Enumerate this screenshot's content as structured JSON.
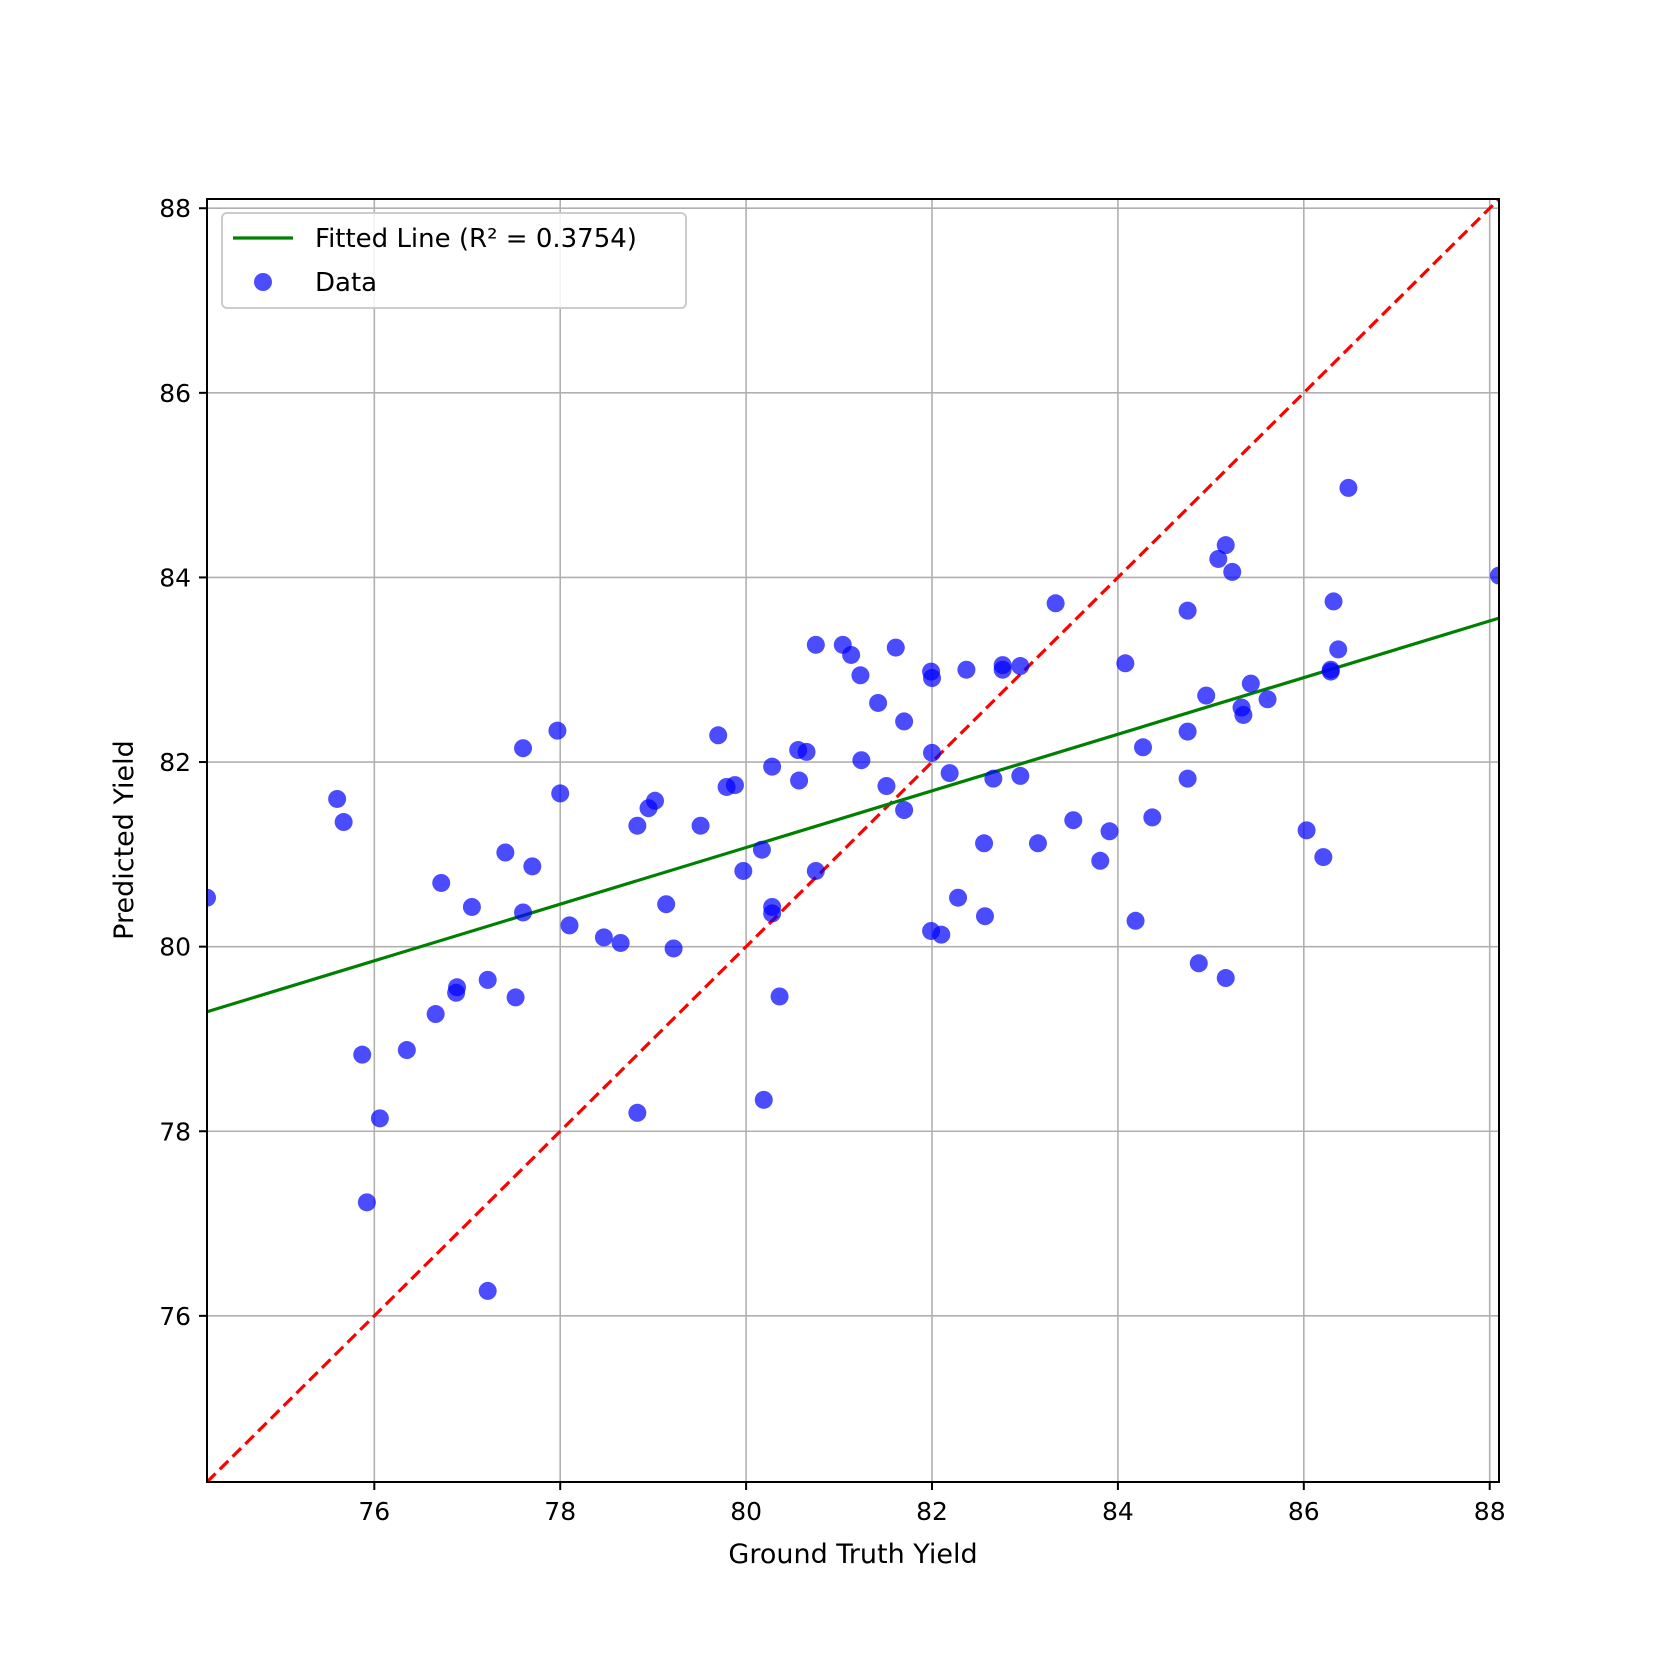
{
  "chart_data": {
    "type": "scatter",
    "xlabel": "Ground Truth Yield",
    "ylabel": "Predicted Yield",
    "xlim": [
      74.2,
      88.1
    ],
    "ylim": [
      74.2,
      88.1
    ],
    "x_ticks": [
      76,
      78,
      80,
      82,
      84,
      86,
      88
    ],
    "y_ticks": [
      76,
      78,
      80,
      82,
      84,
      86,
      88
    ],
    "grid": true,
    "legend_position": "top-left",
    "colors": {
      "fit": "#008000",
      "identity": "#ff0000",
      "points": "#0000ff"
    },
    "fitted_line": {
      "label": "Fitted Line (R² = 0.3754)",
      "slope": 0.3068,
      "intercept": 56.53
    },
    "identity_line": {
      "style": "dashed"
    },
    "series": [
      {
        "name": "Data",
        "points": [
          [
            74.2,
            80.53
          ],
          [
            75.6,
            81.6
          ],
          [
            75.67,
            81.35
          ],
          [
            75.87,
            78.83
          ],
          [
            75.92,
            77.23
          ],
          [
            76.06,
            78.14
          ],
          [
            76.35,
            78.88
          ],
          [
            76.66,
            79.27
          ],
          [
            76.72,
            80.69
          ],
          [
            76.88,
            79.5
          ],
          [
            76.89,
            79.56
          ],
          [
            77.05,
            80.43
          ],
          [
            77.22,
            79.64
          ],
          [
            77.22,
            76.27
          ],
          [
            77.41,
            81.02
          ],
          [
            77.52,
            79.45
          ],
          [
            77.6,
            82.15
          ],
          [
            77.6,
            80.37
          ],
          [
            77.7,
            80.87
          ],
          [
            77.97,
            82.34
          ],
          [
            78.0,
            81.66
          ],
          [
            78.1,
            80.23
          ],
          [
            78.47,
            80.1
          ],
          [
            78.65,
            80.04
          ],
          [
            78.83,
            81.31
          ],
          [
            78.83,
            78.2
          ],
          [
            78.95,
            81.5
          ],
          [
            79.02,
            81.58
          ],
          [
            79.14,
            80.46
          ],
          [
            79.22,
            79.98
          ],
          [
            79.51,
            81.31
          ],
          [
            79.7,
            82.29
          ],
          [
            79.79,
            81.73
          ],
          [
            79.88,
            81.75
          ],
          [
            79.97,
            80.82
          ],
          [
            80.17,
            81.05
          ],
          [
            80.19,
            78.34
          ],
          [
            80.28,
            81.95
          ],
          [
            80.28,
            80.43
          ],
          [
            80.28,
            80.36
          ],
          [
            80.36,
            79.46
          ],
          [
            80.56,
            82.13
          ],
          [
            80.57,
            81.8
          ],
          [
            80.65,
            82.11
          ],
          [
            80.75,
            83.27
          ],
          [
            80.75,
            80.82
          ],
          [
            81.04,
            83.27
          ],
          [
            81.13,
            83.16
          ],
          [
            81.23,
            82.94
          ],
          [
            81.24,
            82.02
          ],
          [
            81.42,
            82.64
          ],
          [
            81.51,
            81.74
          ],
          [
            81.61,
            83.24
          ],
          [
            81.7,
            82.44
          ],
          [
            81.7,
            81.48
          ],
          [
            81.99,
            82.98
          ],
          [
            82.0,
            82.91
          ],
          [
            82.0,
            82.1
          ],
          [
            81.99,
            80.17
          ],
          [
            82.1,
            80.13
          ],
          [
            82.19,
            81.88
          ],
          [
            82.28,
            80.53
          ],
          [
            82.37,
            83.0
          ],
          [
            82.56,
            81.12
          ],
          [
            82.57,
            80.33
          ],
          [
            82.66,
            81.82
          ],
          [
            82.76,
            83.05
          ],
          [
            82.76,
            83.0
          ],
          [
            82.95,
            83.04
          ],
          [
            82.95,
            81.85
          ],
          [
            83.14,
            81.12
          ],
          [
            83.33,
            83.72
          ],
          [
            83.52,
            81.37
          ],
          [
            83.81,
            80.93
          ],
          [
            83.91,
            81.25
          ],
          [
            84.08,
            83.07
          ],
          [
            84.19,
            80.28
          ],
          [
            84.27,
            82.16
          ],
          [
            84.37,
            81.4
          ],
          [
            84.75,
            83.64
          ],
          [
            84.75,
            82.33
          ],
          [
            84.75,
            81.82
          ],
          [
            84.87,
            79.82
          ],
          [
            84.95,
            82.72
          ],
          [
            85.08,
            84.2
          ],
          [
            85.16,
            84.35
          ],
          [
            85.16,
            79.66
          ],
          [
            85.23,
            84.06
          ],
          [
            85.33,
            82.59
          ],
          [
            85.35,
            82.51
          ],
          [
            85.43,
            82.85
          ],
          [
            85.61,
            82.68
          ],
          [
            86.03,
            81.26
          ],
          [
            86.21,
            80.97
          ],
          [
            86.29,
            83.0
          ],
          [
            86.29,
            82.98
          ],
          [
            86.32,
            83.74
          ],
          [
            86.37,
            83.22
          ],
          [
            86.48,
            84.97
          ],
          [
            88.1,
            84.02
          ]
        ]
      }
    ]
  }
}
